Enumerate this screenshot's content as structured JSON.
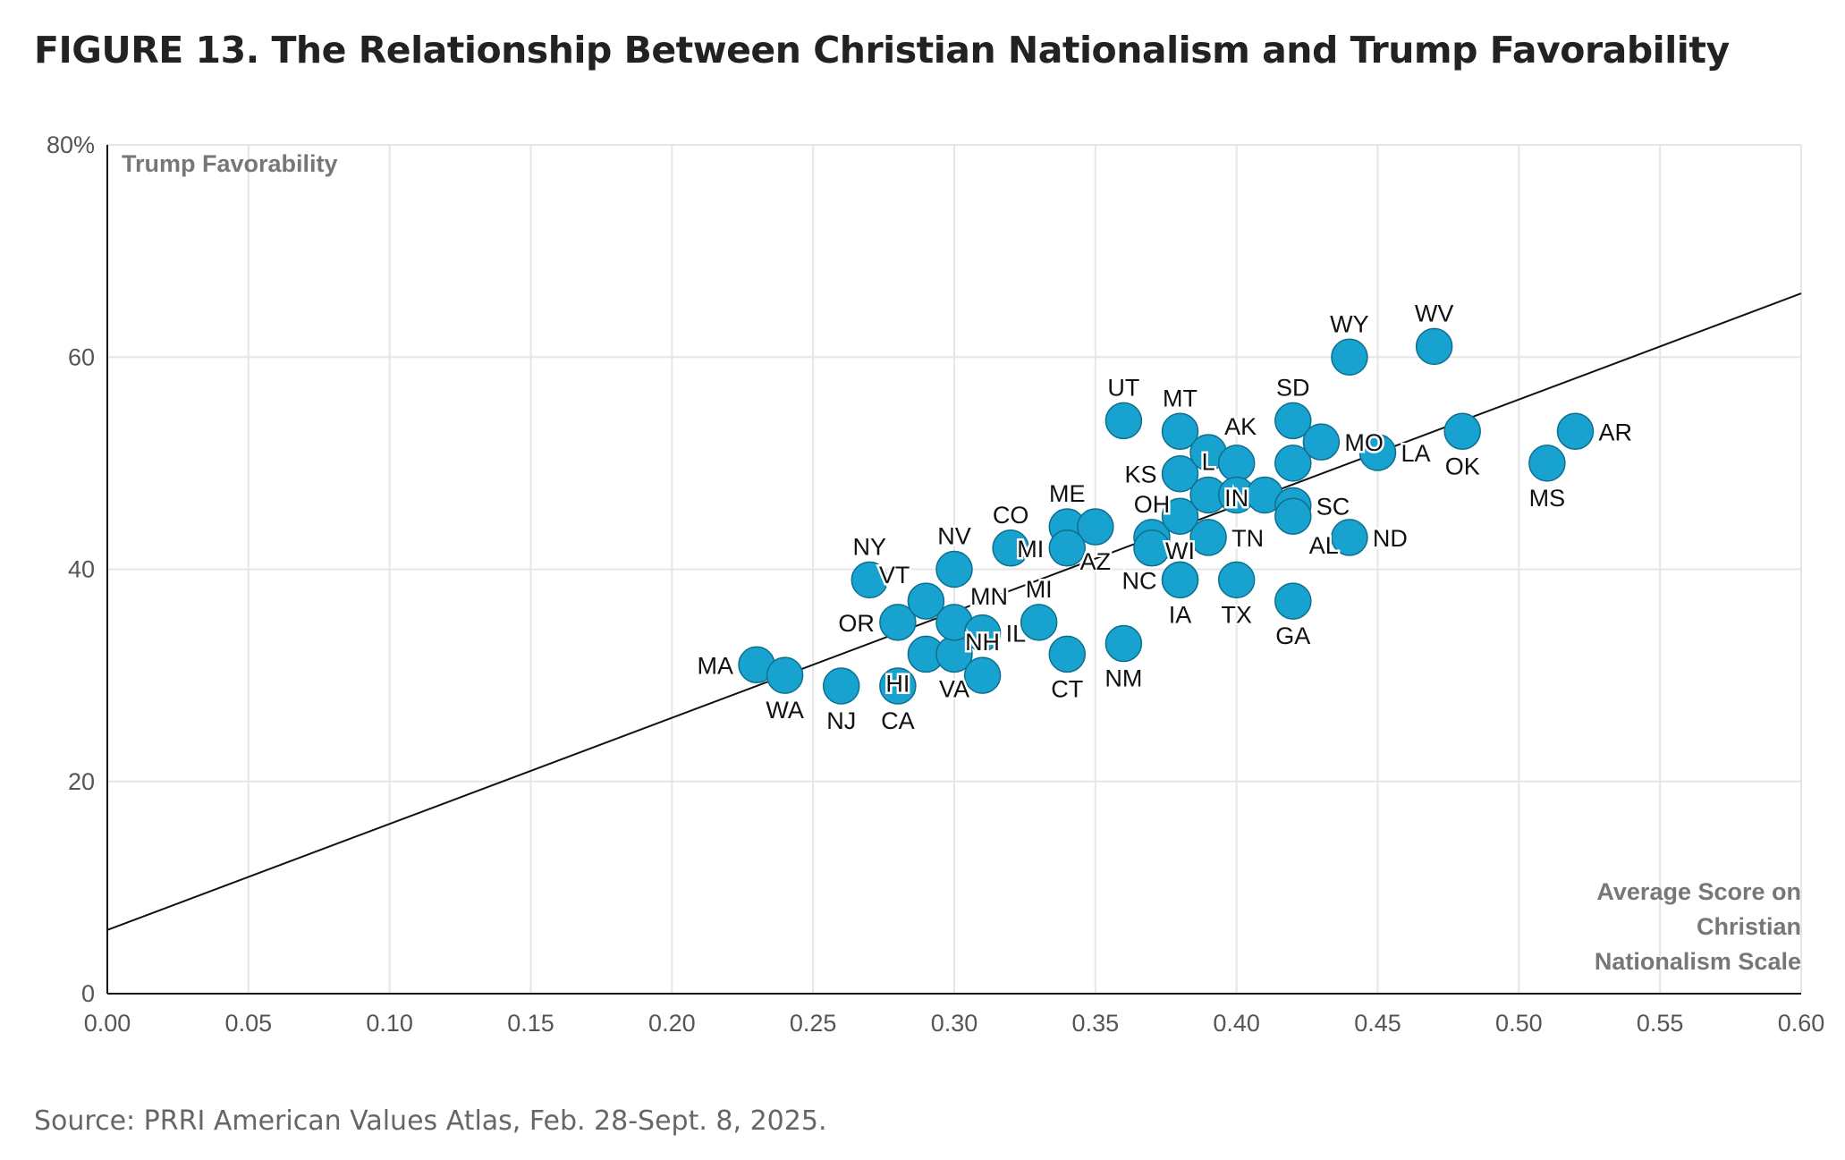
{
  "title": "FIGURE 13.  The Relationship Between Christian Nationalism and Trump Favorability",
  "source": "Source: PRRI American Values Atlas, Feb. 28-Sept. 8, 2025.",
  "chart_data": {
    "type": "scatter",
    "title": "The Relationship Between Christian Nationalism and Trump Favorability",
    "xlabel_lines": [
      "Average Score on",
      "Christian",
      "Nationalism Scale"
    ],
    "ylabel": "Trump Favorability",
    "xlim": [
      0,
      0.6
    ],
    "ylim": [
      0,
      80
    ],
    "xticks": [
      "0.00",
      "0.05",
      "0.10",
      "0.15",
      "0.20",
      "0.25",
      "0.30",
      "0.35",
      "0.40",
      "0.45",
      "0.50",
      "0.55",
      "0.60"
    ],
    "yticks": [
      "0",
      "20",
      "40",
      "60",
      "80%"
    ],
    "grid": true,
    "point_color": "#17a2cf",
    "trendline": {
      "x": [
        0,
        0.6
      ],
      "y": [
        6,
        66
      ]
    },
    "points": [
      {
        "label": "MA",
        "x": 0.23,
        "y": 31
      },
      {
        "label": "WA",
        "x": 0.24,
        "y": 30
      },
      {
        "label": "NJ",
        "x": 0.26,
        "y": 29
      },
      {
        "label": "CA",
        "x": 0.28,
        "y": 29
      },
      {
        "label": "HI",
        "x": 0.29,
        "y": 32
      },
      {
        "label": "VA",
        "x": 0.3,
        "y": 32
      },
      {
        "label": "NH",
        "x": 0.31,
        "y": 30
      },
      {
        "label": "OR",
        "x": 0.28,
        "y": 35
      },
      {
        "label": "NY",
        "x": 0.27,
        "y": 39
      },
      {
        "label": "VT",
        "x": 0.29,
        "y": 37
      },
      {
        "label": "NV",
        "x": 0.3,
        "y": 40
      },
      {
        "label": "MN",
        "x": 0.3,
        "y": 35
      },
      {
        "label": "IL",
        "x": 0.31,
        "y": 34
      },
      {
        "label": "MI",
        "x": 0.33,
        "y": 35
      },
      {
        "label": "CT",
        "x": 0.34,
        "y": 32
      },
      {
        "label": "NM",
        "x": 0.36,
        "y": 33
      },
      {
        "label": "CO",
        "x": 0.32,
        "y": 42
      },
      {
        "label": "ME",
        "x": 0.34,
        "y": 44
      },
      {
        "label": "AZ",
        "x": 0.35,
        "y": 44
      },
      {
        "label": "MI",
        "x": 0.34,
        "y": 42
      },
      {
        "label": "OH",
        "x": 0.37,
        "y": 43
      },
      {
        "label": "",
        "x": 0.37,
        "y": 42
      },
      {
        "label": "NC",
        "x": 0.38,
        "y": 39
      },
      {
        "label": "IA",
        "x": 0.38,
        "y": 39
      },
      {
        "label": "WI",
        "x": 0.38,
        "y": 45
      },
      {
        "label": "KS",
        "x": 0.38,
        "y": 49
      },
      {
        "label": "MT",
        "x": 0.38,
        "y": 53
      },
      {
        "label": "AK",
        "x": 0.39,
        "y": 51
      },
      {
        "label": "IN",
        "x": 0.4,
        "y": 50
      },
      {
        "label": "UT",
        "x": 0.36,
        "y": 54
      },
      {
        "label": "TN",
        "x": 0.39,
        "y": 43
      },
      {
        "label": "L",
        "x": 0.39,
        "y": 47
      },
      {
        "label": "",
        "x": 0.4,
        "y": 47
      },
      {
        "label": "",
        "x": 0.41,
        "y": 47
      },
      {
        "label": "SC",
        "x": 0.42,
        "y": 46
      },
      {
        "label": "AL",
        "x": 0.42,
        "y": 45
      },
      {
        "label": "TX",
        "x": 0.4,
        "y": 39
      },
      {
        "label": "GA",
        "x": 0.42,
        "y": 37
      },
      {
        "label": "ND",
        "x": 0.44,
        "y": 43
      },
      {
        "label": "SD",
        "x": 0.42,
        "y": 54
      },
      {
        "label": "",
        "x": 0.42,
        "y": 50
      },
      {
        "label": "MO",
        "x": 0.43,
        "y": 52
      },
      {
        "label": "LA",
        "x": 0.45,
        "y": 51
      },
      {
        "label": "OK",
        "x": 0.48,
        "y": 53
      },
      {
        "label": "WY",
        "x": 0.44,
        "y": 60
      },
      {
        "label": "WV",
        "x": 0.47,
        "y": 61
      },
      {
        "label": "MS",
        "x": 0.51,
        "y": 50
      },
      {
        "label": "AR",
        "x": 0.52,
        "y": 53
      }
    ]
  }
}
